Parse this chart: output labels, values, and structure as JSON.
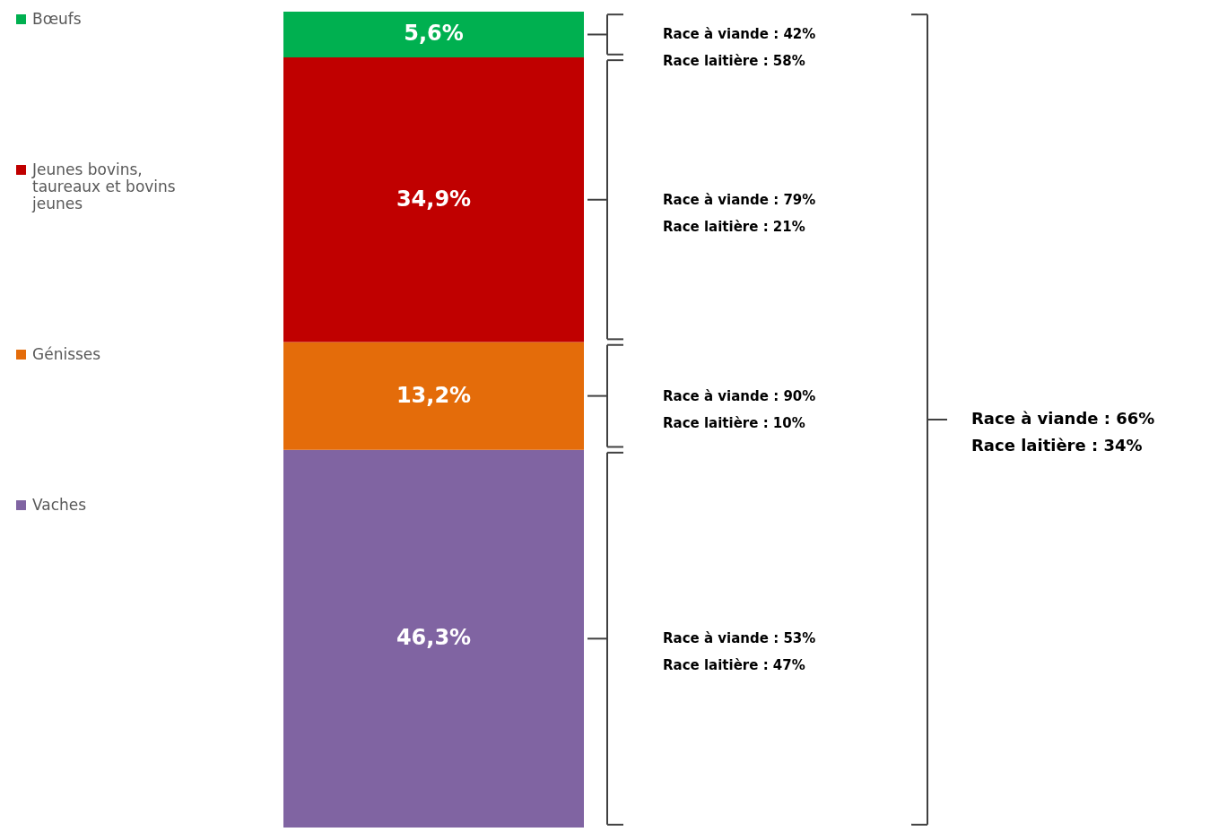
{
  "chart_data": {
    "type": "bar",
    "stacked": true,
    "categories": [
      null
    ],
    "tick_labels": false,
    "legend": "left",
    "series": [
      {
        "name": "Vaches",
        "color": "#8064a2",
        "values": [
          46.3
        ],
        "value_labels": [
          "46,3%"
        ]
      },
      {
        "name": "Génisses",
        "color": "#e46c0a",
        "values": [
          13.2
        ],
        "value_labels": [
          "13,2%"
        ]
      },
      {
        "name": "Jeunes bovins, taureaux et bovins jeunes",
        "color": "#c00000",
        "values": [
          34.9
        ],
        "value_labels": [
          "34,9%"
        ]
      },
      {
        "name": "Bœufs",
        "color": "#00b050",
        "values": [
          5.6
        ],
        "value_labels": [
          "5,6%"
        ]
      }
    ],
    "annotations": [
      "Race à viande  : 42%\nRace laitière   : 58%",
      "Race à viande  : 79%\nRace laitière   : 21%",
      "Race à viande  : 90%\nRace laitière   : 10%",
      "Race à viande  : 53%\nRace laitière   : 47%",
      "Race à viande  : 66%\nRace laitière   : 34%"
    ]
  }
}
